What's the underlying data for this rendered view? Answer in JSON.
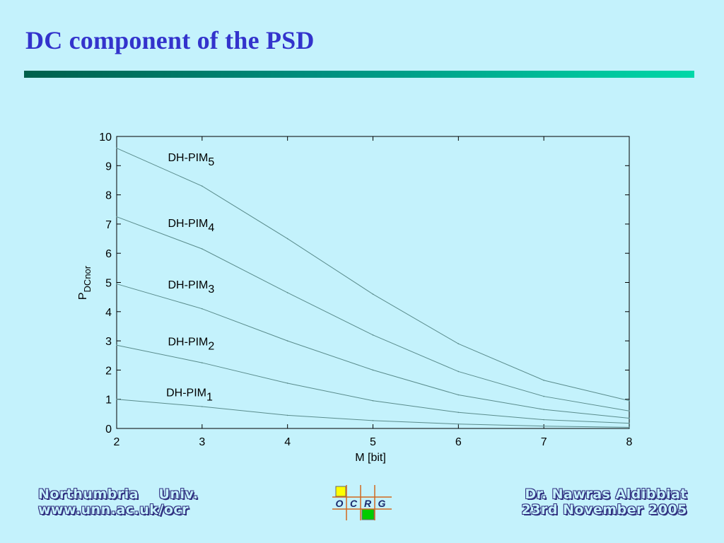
{
  "slide": {
    "title": "DC component of the PSD"
  },
  "footer": {
    "left_line1": "Northumbria    Univ.",
    "left_line2": "www.unn.ac.uk/ocr",
    "right_line1": "Dr. Nawras Aldibbiat",
    "right_line2": "23rd November 2005",
    "logo_letters": [
      "O",
      "C",
      "R",
      "G"
    ]
  },
  "colors": {
    "background": "#c4f2fc",
    "title": "#3333cc",
    "curve": "#5a8c8c",
    "logo_yellow": "#ffff00",
    "logo_green": "#00cc00"
  },
  "chart_data": {
    "type": "line",
    "xlabel": "M [bit]",
    "ylabel_main": "P",
    "ylabel_sub": "DCnor",
    "xlim": [
      2,
      8
    ],
    "ylim": [
      0,
      10
    ],
    "xticks": [
      2,
      3,
      4,
      5,
      6,
      7,
      8
    ],
    "yticks": [
      0,
      1,
      2,
      3,
      4,
      5,
      6,
      7,
      8,
      9,
      10
    ],
    "grid": false,
    "x": [
      2,
      3,
      4,
      5,
      6,
      7,
      8
    ],
    "series": [
      {
        "name": "DH-PIM",
        "sub": "5",
        "values": [
          9.6,
          8.3,
          6.5,
          4.6,
          2.9,
          1.65,
          0.95
        ]
      },
      {
        "name": "DH-PIM",
        "sub": "4",
        "values": [
          7.25,
          6.15,
          4.65,
          3.2,
          1.95,
          1.1,
          0.6
        ]
      },
      {
        "name": "DH-PIM",
        "sub": "3",
        "values": [
          4.95,
          4.1,
          3.0,
          2.0,
          1.15,
          0.65,
          0.35
        ]
      },
      {
        "name": "DH-PIM",
        "sub": "2",
        "values": [
          2.85,
          2.25,
          1.55,
          0.95,
          0.55,
          0.3,
          0.18
        ]
      },
      {
        "name": "DH-PIM",
        "sub": "1",
        "values": [
          1.0,
          0.75,
          0.45,
          0.27,
          0.15,
          0.08,
          0.04
        ]
      }
    ],
    "label_anchors": [
      {
        "x": 2.6,
        "y": 9.15
      },
      {
        "x": 2.6,
        "y": 6.9
      },
      {
        "x": 2.6,
        "y": 4.8
      },
      {
        "x": 2.6,
        "y": 2.85
      },
      {
        "x": 2.58,
        "y": 1.1
      }
    ]
  }
}
